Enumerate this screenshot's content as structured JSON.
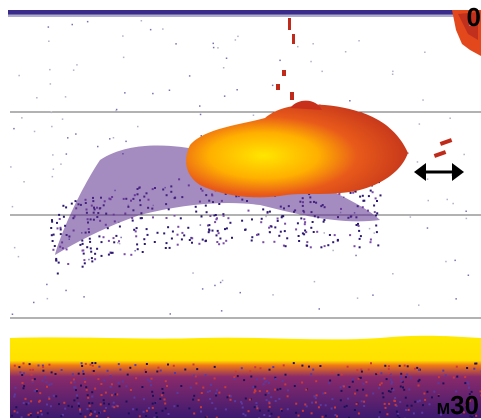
{
  "sonar": {
    "depth_top": "0",
    "depth_bottom_unit": "M",
    "depth_bottom_value": "30",
    "icons": {
      "range_marker": "double-arrow-icon"
    },
    "colors": {
      "background": "#ffffff",
      "strong_return": "#ffe100",
      "medium_return": "#e0401a",
      "weak_return": "#3a1b7a",
      "grid_line": "#555555",
      "surface_bar": "#3a2a8a"
    }
  }
}
